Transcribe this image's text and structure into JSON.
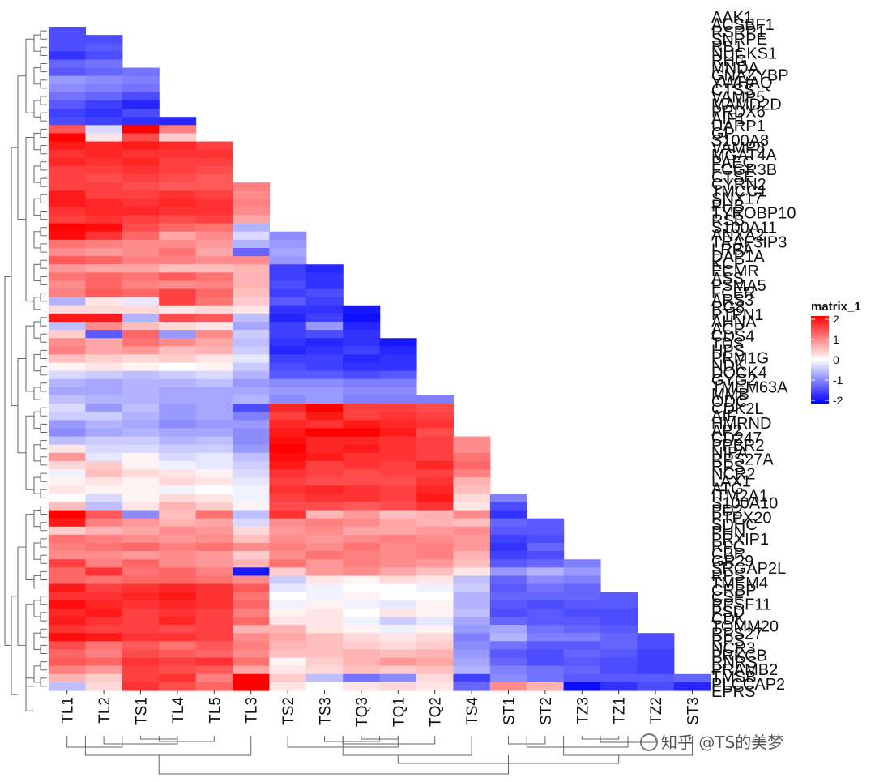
{
  "chart_data": {
    "type": "heatmap",
    "layout": "lower-triangular, clustered",
    "columns": [
      "TL1",
      "TL2",
      "TS1",
      "TL4",
      "TL5",
      "TL3",
      "TS2",
      "TS3",
      "TQ3",
      "TQ1",
      "TQ2",
      "TS4",
      "ST1",
      "ST2",
      "TZ3",
      "TZ1",
      "TZ2",
      "ST3"
    ],
    "rows": [
      "AAK1",
      "ACSBF1",
      "RSRP1",
      "SNRPE",
      "RB1",
      "NUCKS1",
      "RHG",
      "MNDA",
      "GNAZYBP",
      "YWHAQ",
      "CTSS",
      "VAMP5",
      "MAMD2D",
      "PRDX6",
      "AIF1",
      "UARP1",
      "GP",
      "S100A8",
      "VAMP8",
      "MGAT4A",
      "PAEC",
      "FCGR3B",
      "CTSE",
      "CYRN2",
      "TMCC1",
      "SNX17",
      "PHB",
      "TYROBP10",
      "RSB",
      "S100A11",
      "ANXA2",
      "TRAF3IP3",
      "LRBA",
      "DAP1A",
      "KCP",
      "ECMR",
      "ASS",
      "PSMA5",
      "FCER",
      "ARS3",
      "RG8",
      "PTPN1",
      "AHNA",
      "ACP",
      "CDS4",
      "TDS",
      "HPS",
      "PRM1G",
      "NDK",
      "DOCK4",
      "GYG2",
      "TMEM63A",
      "MMB",
      "ODC",
      "CDK2L",
      "AIF",
      "HMRND",
      "AP2",
      "CD247",
      "PPBR2",
      "NIPA",
      "RPS27A",
      "RPS",
      "NCR2",
      "LAX1",
      "ATG",
      "ITM2A1",
      "S100A10",
      "PD2",
      "PTPX20",
      "SDHC",
      "PHN",
      "PRXIP1",
      "RFC",
      "CBR",
      "GR29",
      "SRGAP2L",
      "RPS",
      "TMEM4",
      "CRBP",
      "CSF",
      "RPSF11",
      "PSD",
      "CDK",
      "TOMM20",
      "RPS27",
      "RPS",
      "NCR3",
      "PRKCB",
      "RNRS",
      "PRAMB2",
      "TMSB",
      "PLCCAP2",
      "EPRS"
    ],
    "values": [
      [
        -1.4
      ],
      [
        -1.4,
        -1.4
      ],
      [
        -1.4,
        -1.3
      ],
      [
        -1.6,
        -1.4
      ],
      [
        -1.2,
        -1.1
      ],
      [
        -1.3,
        -1.2,
        -1.1
      ],
      [
        -0.8,
        -0.9,
        -1.0
      ],
      [
        -0.9,
        -1.0,
        -1.1
      ],
      [
        -1.1,
        -1.2,
        -1.4
      ],
      [
        -1.3,
        -1.5,
        -1.7
      ],
      [
        -1.5,
        -1.6,
        -1.4
      ],
      [
        -1.4,
        -1.5,
        -1.6,
        -1.7
      ],
      [
        1.3,
        -0.3,
        2.1,
        1.0
      ],
      [
        2.2,
        0.2,
        1.4,
        0.4
      ],
      [
        1.8,
        1.7,
        1.8,
        1.7,
        1.5
      ],
      [
        1.6,
        1.7,
        1.6,
        1.6,
        1.6
      ],
      [
        1.7,
        1.6,
        1.7,
        1.5,
        1.5
      ],
      [
        1.5,
        1.5,
        1.6,
        1.5,
        1.4
      ],
      [
        1.5,
        1.4,
        1.5,
        1.4,
        1.3
      ],
      [
        1.5,
        1.5,
        1.4,
        1.3,
        1.3,
        1.0
      ],
      [
        1.8,
        1.5,
        1.5,
        1.6,
        1.5,
        0.9
      ],
      [
        1.8,
        1.7,
        1.6,
        1.7,
        1.6,
        1.0
      ],
      [
        1.6,
        1.7,
        1.7,
        1.6,
        1.6,
        0.9
      ],
      [
        1.5,
        1.6,
        1.5,
        1.4,
        1.5,
        0.7
      ],
      [
        2.3,
        1.9,
        1.4,
        1.2,
        1.1,
        -0.6
      ],
      [
        1.9,
        1.6,
        1.2,
        0.7,
        0.9,
        -0.3,
        -0.9
      ],
      [
        1.1,
        1.0,
        0.9,
        0.9,
        0.8,
        -0.6,
        -0.8
      ],
      [
        0.9,
        0.8,
        0.9,
        1.1,
        0.7,
        -1.2,
        -0.7
      ],
      [
        1.3,
        1.2,
        1.0,
        1.0,
        0.9,
        0.9,
        -0.8
      ],
      [
        0.8,
        0.7,
        0.7,
        0.5,
        0.5,
        0.6,
        -1.5,
        -1.7
      ],
      [
        1.1,
        1.2,
        1.1,
        1.3,
        1.1,
        0.6,
        -1.5,
        -1.6
      ],
      [
        0.9,
        1.2,
        1.0,
        0.9,
        1.0,
        0.6,
        -1.4,
        -1.6
      ],
      [
        1.0,
        1.3,
        1.2,
        1.5,
        1.2,
        0.5,
        -1.5,
        -1.4
      ],
      [
        -0.6,
        0.2,
        -0.2,
        1.5,
        1.1,
        0.4,
        -1.3,
        -1.5
      ],
      [
        0.3,
        0.3,
        0.3,
        0.2,
        0.3,
        0.2,
        -1.6,
        -1.6,
        -1.8
      ],
      [
        1.8,
        1.8,
        -0.6,
        1.4,
        1.3,
        -0.5,
        -1.7,
        -1.5,
        -1.9
      ],
      [
        -0.5,
        0.9,
        0.5,
        0.3,
        0.2,
        -0.7,
        -1.5,
        -0.8,
        -1.7
      ],
      [
        0.4,
        -1.3,
        1.2,
        -0.8,
        0.9,
        -0.4,
        -1.5,
        -1.4,
        -1.6
      ],
      [
        0.9,
        0.7,
        1.1,
        0.9,
        0.7,
        -0.5,
        -1.6,
        -1.7,
        -1.6,
        -1.8
      ],
      [
        1.0,
        0.7,
        0.8,
        0.5,
        0.6,
        -0.4,
        -1.7,
        -1.6,
        -1.5,
        -1.7
      ],
      [
        0.5,
        0.4,
        0.3,
        0.4,
        0.2,
        -0.2,
        -1.5,
        -1.5,
        -1.7,
        -1.6
      ],
      [
        0.1,
        0.2,
        0.1,
        0.0,
        0.1,
        -0.4,
        -1.4,
        -1.5,
        -1.6,
        -1.6
      ],
      [
        -0.3,
        -0.4,
        -0.5,
        -0.4,
        -0.3,
        -0.6,
        -1.3,
        -1.3,
        -1.4,
        -1.3
      ],
      [
        -0.6,
        -0.7,
        -0.6,
        -0.6,
        -0.5,
        -0.8,
        -0.9,
        -0.9,
        -1.0,
        -1.0
      ],
      [
        -0.7,
        -0.7,
        -0.6,
        -0.7,
        -0.7,
        -0.7,
        -0.8,
        -0.8,
        -0.9,
        -0.9
      ],
      [
        -0.5,
        -0.6,
        -0.6,
        -0.7,
        -0.7,
        -0.6,
        -0.9,
        -0.8,
        -1.0,
        -1.0,
        -1.0
      ],
      [
        -0.3,
        -0.8,
        -0.5,
        -0.8,
        -0.7,
        -1.4,
        1.7,
        2.1,
        1.5,
        1.5,
        1.4
      ],
      [
        -0.4,
        -0.4,
        -0.6,
        -0.8,
        -0.7,
        -1.0,
        1.5,
        1.8,
        1.5,
        1.6,
        1.5
      ],
      [
        -0.8,
        -0.6,
        -0.7,
        -0.9,
        -0.8,
        -0.8,
        1.7,
        1.6,
        1.8,
        1.7,
        1.6
      ],
      [
        -0.9,
        -0.7,
        -0.6,
        -0.7,
        -0.7,
        -0.9,
        1.8,
        2.3,
        2.0,
        1.8,
        1.4
      ],
      [
        -0.5,
        -0.4,
        -0.4,
        -0.6,
        -0.5,
        -0.9,
        1.9,
        1.7,
        1.7,
        1.6,
        1.5,
        0.9
      ],
      [
        0.2,
        -0.3,
        -0.3,
        -0.4,
        -0.4,
        -0.8,
        2.0,
        1.7,
        1.8,
        1.6,
        1.5,
        0.9
      ],
      [
        0.8,
        -0.2,
        0.1,
        -0.3,
        -0.2,
        -0.5,
        1.9,
        1.8,
        1.6,
        1.6,
        1.5,
        1.1
      ],
      [
        0.3,
        0.4,
        0.1,
        -0.1,
        -0.2,
        -0.4,
        1.8,
        1.5,
        1.6,
        1.5,
        1.7,
        1.2
      ],
      [
        -0.1,
        0.5,
        0.3,
        0.2,
        0.1,
        -0.3,
        1.6,
        1.5,
        1.4,
        1.5,
        1.5,
        1.0
      ],
      [
        0.1,
        0.2,
        0.1,
        0.3,
        0.2,
        -0.2,
        1.5,
        1.4,
        1.4,
        1.4,
        1.6,
        0.6
      ],
      [
        0.2,
        0.1,
        0.1,
        -0.1,
        0.0,
        -0.1,
        1.6,
        1.7,
        1.6,
        1.5,
        1.7,
        0.5
      ],
      [
        0.0,
        -0.3,
        0.1,
        0.3,
        0.2,
        -0.1,
        1.5,
        1.6,
        1.6,
        1.5,
        1.8,
        0.3,
        -1.0
      ],
      [
        0.5,
        -0.5,
        0.2,
        0.6,
        0.4,
        0.1,
        1.4,
        1.4,
        1.3,
        1.4,
        1.6,
        0.2,
        -1.4
      ],
      [
        2.3,
        1.3,
        -0.9,
        0.5,
        1.1,
        -0.5,
        1.6,
        0.6,
        0.8,
        0.5,
        0.6,
        0.9,
        -1.6
      ],
      [
        1.8,
        1.0,
        0.8,
        0.6,
        0.7,
        -0.3,
        0.9,
        1.0,
        0.9,
        0.7,
        0.6,
        0.5,
        -1.2,
        -1.3
      ],
      [
        0.4,
        0.6,
        0.7,
        0.9,
        0.8,
        0.3,
        0.8,
        0.9,
        0.7,
        0.7,
        0.8,
        0.9,
        -1.3,
        -1.3
      ],
      [
        1.1,
        1.0,
        0.9,
        0.8,
        0.9,
        0.5,
        0.9,
        0.8,
        0.9,
        1.0,
        0.9,
        0.8,
        -1.5,
        -1.4
      ],
      [
        1.0,
        1.1,
        1.2,
        1.0,
        1.1,
        0.9,
        1.0,
        0.9,
        1.1,
        0.9,
        1.0,
        0.8,
        -1.6,
        -1.2
      ],
      [
        0.9,
        0.9,
        0.8,
        0.9,
        0.8,
        0.4,
        0.9,
        1.1,
        1.0,
        0.9,
        1.0,
        0.6,
        -1.5,
        -1.4
      ],
      [
        1.5,
        1.0,
        1.2,
        0.9,
        0.8,
        0.6,
        1.1,
        0.8,
        1.0,
        0.9,
        0.8,
        0.5,
        -1.3,
        -1.2,
        -1.0
      ],
      [
        1.2,
        1.6,
        1.1,
        1.2,
        1.0,
        -1.8,
        0.4,
        0.8,
        0.9,
        0.7,
        0.5,
        0.2,
        -0.8,
        -0.6,
        -0.8
      ],
      [
        1.2,
        1.1,
        1.2,
        1.2,
        1.1,
        0.9,
        -0.4,
        0.2,
        0.1,
        0.3,
        0.2,
        -0.5,
        -1.2,
        -0.9,
        -1.0
      ],
      [
        1.8,
        1.5,
        1.6,
        1.7,
        1.6,
        1.3,
        -0.2,
        -0.1,
        0.0,
        0.0,
        -0.1,
        -0.4,
        -1.3,
        -1.1,
        -1.2
      ],
      [
        1.6,
        1.6,
        1.7,
        1.8,
        1.6,
        1.1,
        0.0,
        -0.1,
        0.1,
        0.0,
        0.0,
        -0.6,
        -1.2,
        -1.2,
        -1.2,
        -1.3
      ],
      [
        1.9,
        1.7,
        1.6,
        1.7,
        1.6,
        1.2,
        -0.1,
        0.1,
        -0.1,
        -0.2,
        0.1,
        -0.6,
        -1.3,
        -1.4,
        -1.3,
        -1.3
      ],
      [
        1.7,
        1.8,
        1.5,
        1.6,
        1.5,
        1.0,
        0.1,
        0.2,
        0.0,
        0.2,
        0.1,
        -0.5,
        -1.4,
        -1.3,
        -1.4,
        -1.4
      ],
      [
        1.8,
        1.6,
        1.5,
        1.7,
        1.5,
        1.2,
        0.2,
        0.2,
        -0.1,
        -0.4,
        -0.2,
        -0.7,
        -1.2,
        -1.3,
        -1.3,
        -1.4
      ],
      [
        1.6,
        1.5,
        1.5,
        1.4,
        1.5,
        0.6,
        0.6,
        0.2,
        0.1,
        -0.1,
        0.1,
        -0.8,
        -0.7,
        -1.1,
        -1.2,
        -1.3
      ],
      [
        1.9,
        1.8,
        1.6,
        1.6,
        1.5,
        0.9,
        0.7,
        0.5,
        0.3,
        0.2,
        0.3,
        -1.0,
        -0.6,
        -1.0,
        -1.0,
        -1.2,
        -1.4
      ],
      [
        1.4,
        1.1,
        1.3,
        1.1,
        1.3,
        1.0,
        0.6,
        0.5,
        0.4,
        0.3,
        0.4,
        -0.9,
        -1.1,
        -1.3,
        -1.3,
        -1.2,
        -1.4
      ],
      [
        1.2,
        1.0,
        1.4,
        1.3,
        1.2,
        0.9,
        0.5,
        0.5,
        0.6,
        0.5,
        0.6,
        -0.8,
        -1.3,
        -1.4,
        -1.2,
        -1.3,
        -1.5
      ],
      [
        1.3,
        1.2,
        1.6,
        1.5,
        1.6,
        1.1,
        0.1,
        0.4,
        0.6,
        0.8,
        0.7,
        -0.7,
        -1.2,
        -1.4,
        -1.3,
        -1.4,
        -1.5
      ],
      [
        1.0,
        0.8,
        1.5,
        1.4,
        1.3,
        0.7,
        0.2,
        0.3,
        0.5,
        0.4,
        0.5,
        -0.6,
        -1.0,
        -1.1,
        -1.2,
        -1.4,
        -1.5
      ],
      [
        0.6,
        0.4,
        1.5,
        1.6,
        1.0,
        2.0,
        0.4,
        -0.5,
        -1.1,
        -0.9,
        0.3,
        -1.5,
        -0.9,
        -1.1,
        -1.3,
        -1.3,
        -1.3,
        -1.2
      ],
      [
        -0.5,
        0.3,
        1.6,
        1.4,
        1.2,
        2.4,
        0.2,
        0.0,
        0.2,
        0.3,
        0.2,
        -1.2,
        0.9,
        0.6,
        -1.9,
        -1.6,
        -1.4,
        -1.7
      ]
    ],
    "color_scale": {
      "min": -2,
      "max": 2,
      "low": "#0000ff",
      "mid": "#ffffff",
      "high": "#ff0000"
    },
    "legend": {
      "title": "matrix_1",
      "ticks": [
        "2",
        "1",
        "0",
        "-1",
        "-2"
      ],
      "position": "right"
    },
    "dendrograms": [
      "rows-left",
      "columns-bottom"
    ]
  },
  "watermark": "知乎 @TS的美梦"
}
